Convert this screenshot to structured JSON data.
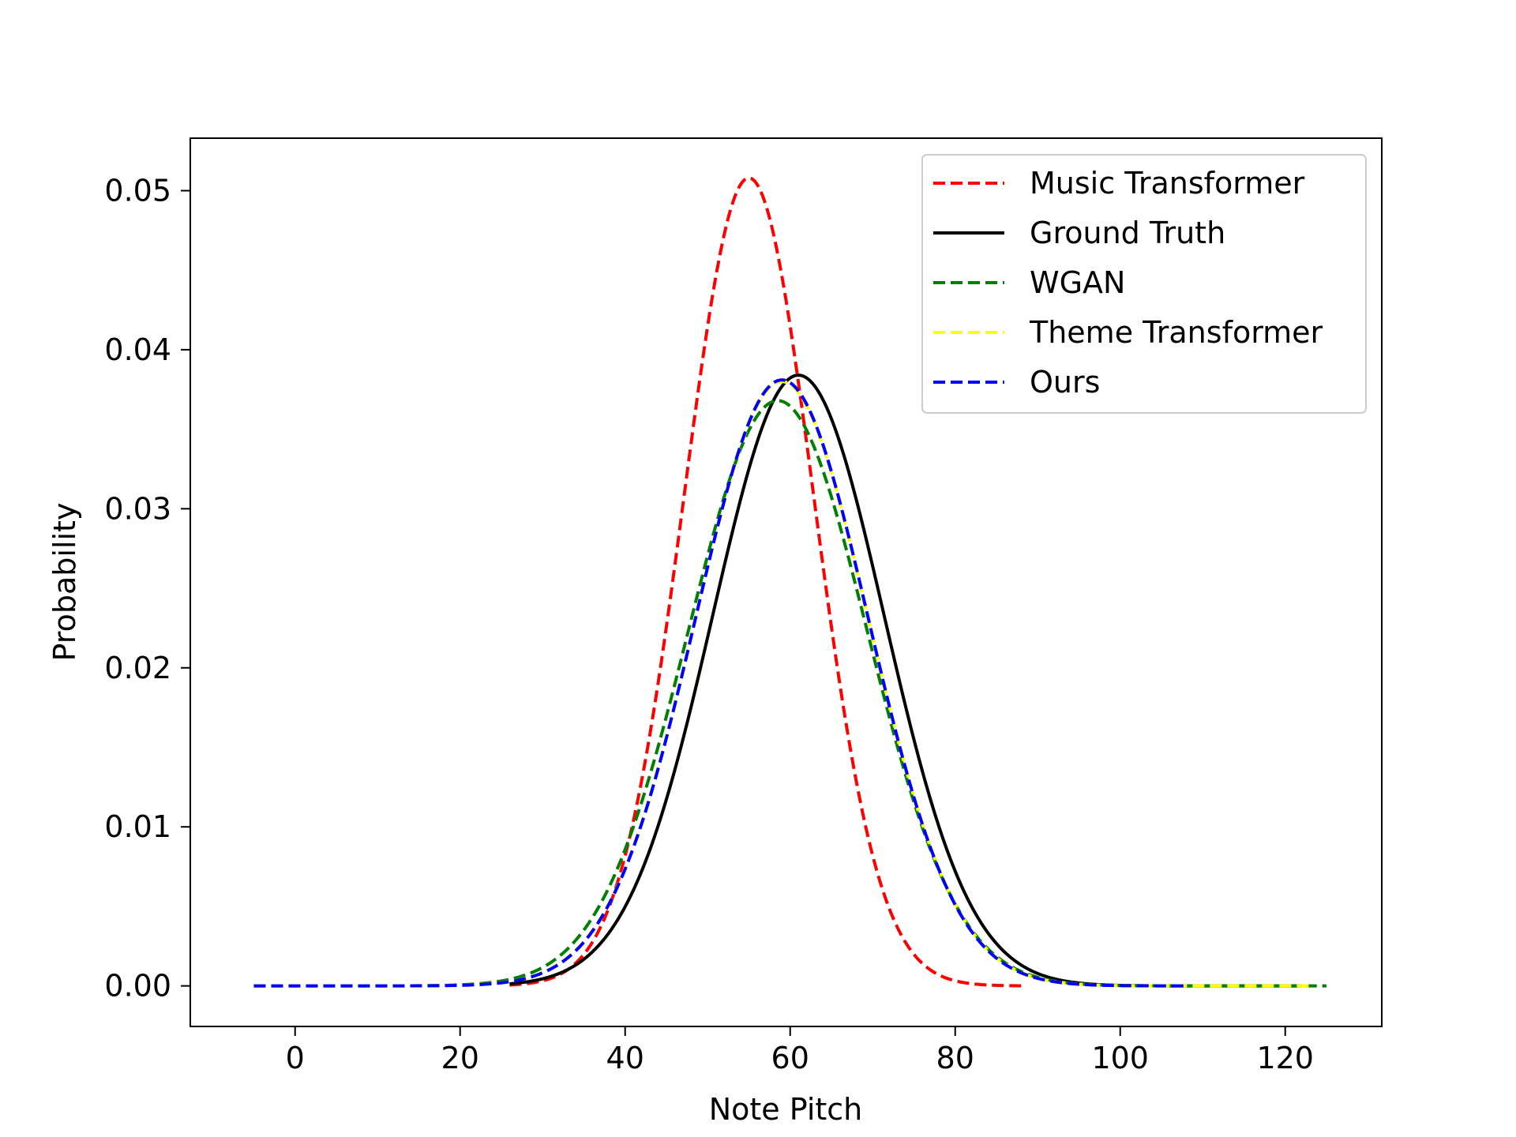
{
  "chart_data": {
    "type": "line",
    "title": "",
    "xlabel": "Note Pitch",
    "ylabel": "Probability",
    "xlim": [
      -12.7,
      131.7
    ],
    "ylim": [
      -0.00255,
      0.0533
    ],
    "xticks": [
      0,
      20,
      40,
      60,
      80,
      100,
      120
    ],
    "xtick_labels": [
      "0",
      "20",
      "40",
      "60",
      "80",
      "100",
      "120"
    ],
    "yticks": [
      0.0,
      0.01,
      0.02,
      0.03,
      0.04,
      0.05
    ],
    "ytick_labels": [
      "0.00",
      "0.01",
      "0.02",
      "0.03",
      "0.04",
      "0.05"
    ],
    "grid": false,
    "legend_position": "top-right",
    "series": [
      {
        "name": "Music Transformer",
        "color": "#ff0000",
        "style": "dashed",
        "curve": {
          "form": "gaussian",
          "mean": 55,
          "peak": 0.0508,
          "x_range": [
            26,
            88
          ]
        }
      },
      {
        "name": "Ground Truth",
        "color": "#000000",
        "style": "solid",
        "curve": {
          "form": "gaussian",
          "mean": 61,
          "peak": 0.0384,
          "x_range": [
            26,
            122
          ]
        }
      },
      {
        "name": "WGAN",
        "color": "#008000",
        "style": "dashed",
        "curve": {
          "form": "gaussian",
          "mean": 58.5,
          "peak": 0.0368,
          "x_range": [
            -5,
            125
          ]
        }
      },
      {
        "name": "Theme Transformer",
        "color": "#ffff00",
        "style": "dashed",
        "curve": {
          "form": "gaussian",
          "mean": 59,
          "peak": 0.038,
          "x_range": [
            -5,
            123
          ]
        }
      },
      {
        "name": "Ours",
        "color": "#0000ff",
        "style": "dashed",
        "curve": {
          "form": "gaussian",
          "mean": 59,
          "peak": 0.0381,
          "x_range": [
            -5,
            108
          ]
        }
      }
    ]
  }
}
